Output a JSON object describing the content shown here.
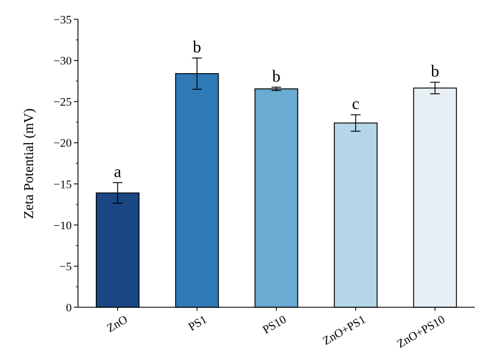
{
  "chart_data": {
    "type": "bar",
    "ylabel": "Zeta Potential (mV)",
    "xlabel": "",
    "ylim": [
      0,
      -35
    ],
    "yticks": [
      0,
      -5,
      -10,
      -15,
      -20,
      -25,
      -30,
      -35
    ],
    "ytick_labels": [
      "0",
      "−5",
      "−10",
      "−15",
      "−20",
      "−25",
      "−30",
      "−35"
    ],
    "categories": [
      "ZnO",
      "PS1",
      "PS10",
      "ZnO+PS1",
      "ZnO+PS10"
    ],
    "values": [
      -13.9,
      -28.4,
      -26.55,
      -22.4,
      -26.65
    ],
    "errors": [
      1.25,
      1.9,
      0.2,
      1.0,
      0.7
    ],
    "significance": [
      "a",
      "b",
      "b",
      "c",
      "b"
    ],
    "colors": [
      "#1a4784",
      "#2f79b7",
      "#6aaad3",
      "#b5d6e9",
      "#e8f0f5"
    ],
    "grid": false
  }
}
